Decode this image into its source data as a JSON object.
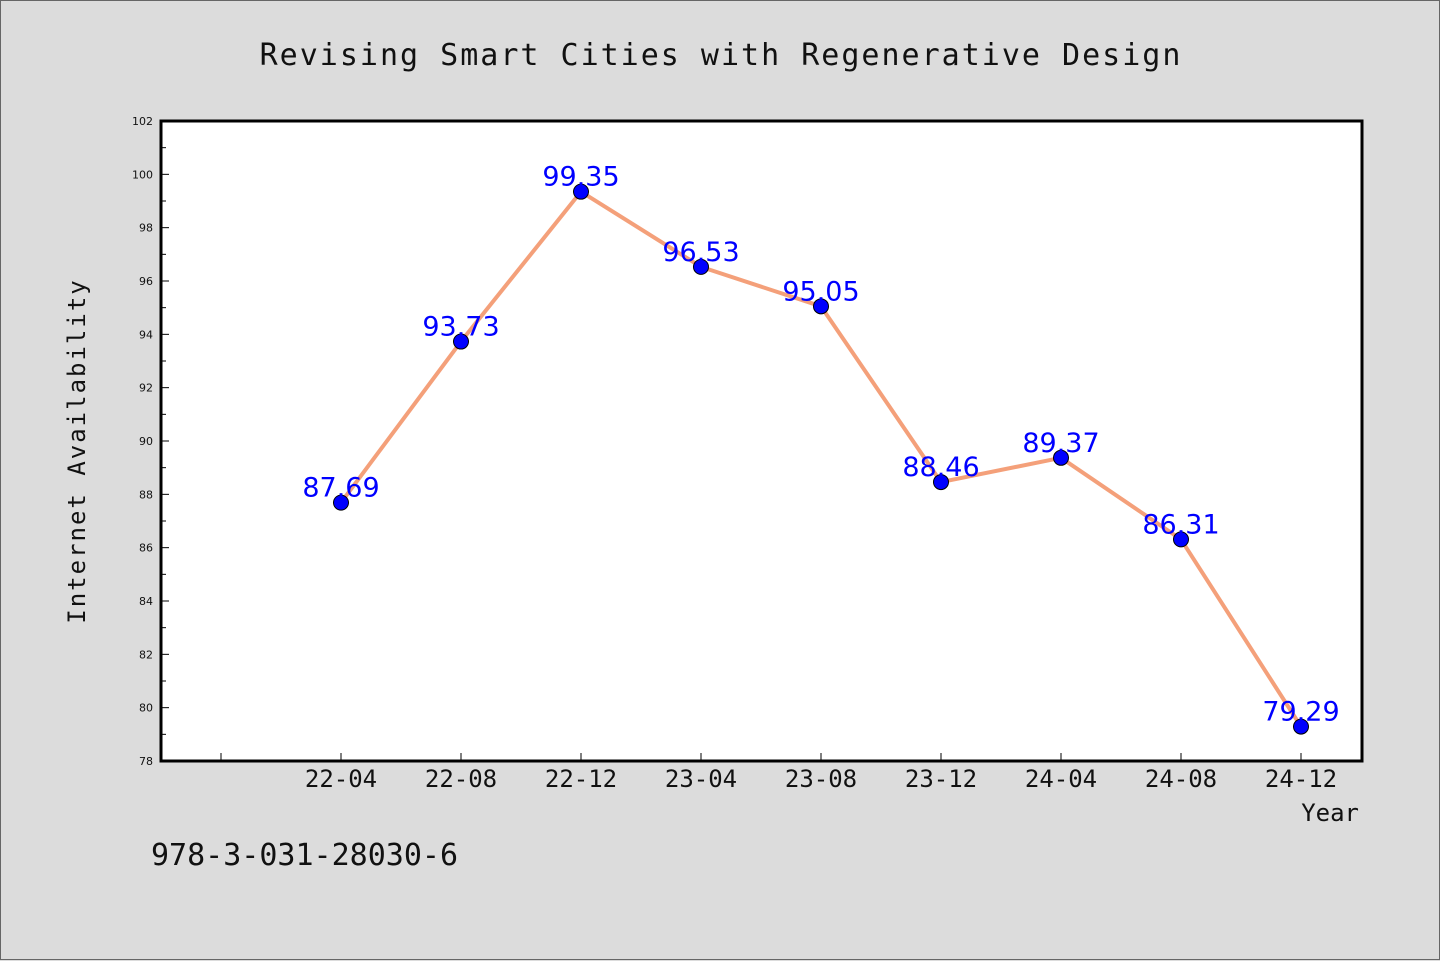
{
  "chart_data": {
    "type": "line",
    "title": "Revising Smart Cities with Regenerative Design",
    "xlabel": "Year",
    "ylabel": "Internet Availability",
    "categories": [
      "22-04",
      "22-08",
      "22-12",
      "23-04",
      "23-08",
      "23-12",
      "24-04",
      "24-08",
      "24-12"
    ],
    "series": [
      {
        "values": [
          87.69,
          93.73,
          99.35,
          96.53,
          95.05,
          88.46,
          89.37,
          86.31,
          79.29
        ]
      }
    ],
    "data_labels": [
      "87.69",
      "93.73",
      "99.35",
      "96.53",
      "95.05",
      "88.46",
      "89.37",
      "86.31",
      "79.29"
    ],
    "ylim": [
      78,
      102
    ],
    "yticks": [
      78,
      80,
      82,
      84,
      86,
      88,
      90,
      92,
      94,
      96,
      98,
      100,
      102
    ],
    "grid": false,
    "colors": {
      "line": "#f4a07a",
      "marker": "#0000ff",
      "label": "#0000ff",
      "background": "#dcdcdc",
      "plot_area": "#ffffff"
    }
  },
  "footer_note": "978-3-031-28030-6"
}
